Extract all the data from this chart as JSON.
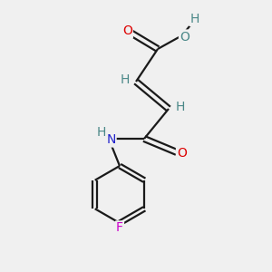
{
  "background_color": "#f0f0f0",
  "bond_color": "#1a1a1a",
  "atom_colors": {
    "O": "#dd0000",
    "N": "#2222cc",
    "F": "#cc00cc",
    "H": "#4a8888",
    "C": "#1a1a1a"
  },
  "figsize": [
    3.0,
    3.0
  ],
  "dpi": 100,
  "xlim": [
    0,
    10
  ],
  "ylim": [
    0,
    10
  ],
  "bond_lw": 1.6,
  "font_size": 10
}
